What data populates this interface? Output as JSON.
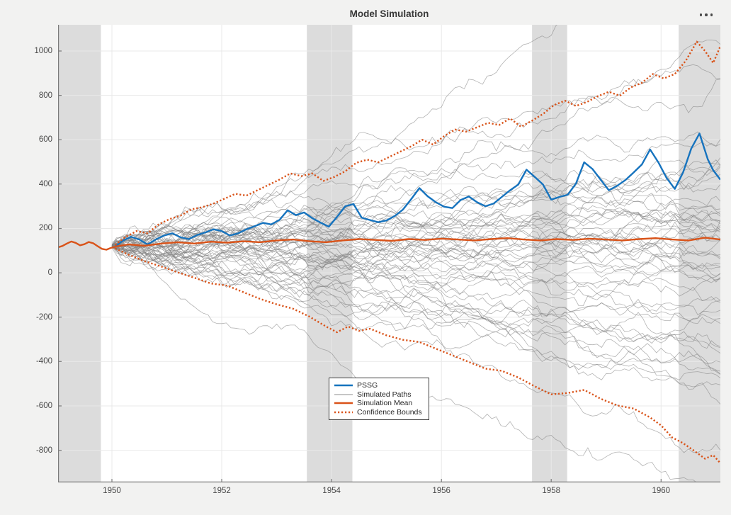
{
  "toolbar": {
    "more_options_icon": "ellipsis-icon"
  },
  "chart_data": {
    "type": "line",
    "title": "Model Simulation",
    "xlabel": "",
    "ylabel": "",
    "xlim": [
      1949.02,
      1961.08
    ],
    "ylim": [
      -945,
      1118
    ],
    "grid": true,
    "x_ticks": [
      1950,
      1952,
      1954,
      1956,
      1958,
      1960
    ],
    "x_tick_labels": [
      "1950",
      "1952",
      "1954",
      "1956",
      "1958",
      "1960"
    ],
    "y_ticks": [
      -800,
      -600,
      -400,
      -200,
      0,
      200,
      400,
      600,
      800,
      1000
    ],
    "y_tick_labels": [
      "-800",
      "-600",
      "-400",
      "-200",
      "0",
      "200",
      "400",
      "600",
      "800",
      "1000"
    ],
    "recession_bands": [
      [
        1949.02,
        1949.8
      ],
      [
        1953.55,
        1954.38
      ],
      [
        1957.65,
        1958.29
      ],
      [
        1960.32,
        1961.08
      ]
    ],
    "colors": {
      "pssg_blue": "#1673BE",
      "orange": "#D95319",
      "simulated_gray": "#808080",
      "band_gray": "#dcdcdc",
      "grid": "#e9e9e9",
      "spine": "#7b7b7b",
      "tick_label": "#474747",
      "figure_background": "#f2f2f1",
      "axes_background": "#ffffff"
    },
    "legend": {
      "position": "south-center",
      "entries": [
        {
          "label": "PSSG",
          "color": "#1673BE",
          "width": 2.6,
          "dash": "none"
        },
        {
          "label": "Simulated Paths",
          "color": "#8c8c8c",
          "width": 1,
          "dash": "none"
        },
        {
          "label": "Simulation Mean",
          "color": "#D95319",
          "width": 2.6,
          "dash": "none"
        },
        {
          "label": "Confidence Bounds",
          "color": "#D95319",
          "width": 2.6,
          "dash": "2.2 2.8"
        }
      ]
    },
    "series": [
      {
        "name": "Observed PSSG (pre-sample)",
        "color": "#D95319",
        "width": 2.4,
        "dash": "none",
        "points": [
          [
            1949.02,
            115
          ],
          [
            1949.1,
            121
          ],
          [
            1949.18,
            132
          ],
          [
            1949.26,
            141
          ],
          [
            1949.34,
            135
          ],
          [
            1949.42,
            124
          ],
          [
            1949.5,
            129
          ],
          [
            1949.58,
            139
          ],
          [
            1949.66,
            133
          ],
          [
            1949.74,
            120
          ],
          [
            1949.82,
            108
          ],
          [
            1949.9,
            104
          ],
          [
            1949.98,
            112
          ],
          [
            1950.06,
            117
          ]
        ]
      },
      {
        "name": "PSSG",
        "color": "#1673BE",
        "width": 2.4,
        "dash": "none",
        "points": [
          [
            1950.06,
            118
          ],
          [
            1950.2,
            145
          ],
          [
            1950.35,
            162
          ],
          [
            1950.5,
            150
          ],
          [
            1950.65,
            128
          ],
          [
            1950.8,
            150
          ],
          [
            1950.95,
            168
          ],
          [
            1951.1,
            178
          ],
          [
            1951.25,
            160
          ],
          [
            1951.4,
            152
          ],
          [
            1951.55,
            170
          ],
          [
            1951.7,
            182
          ],
          [
            1951.85,
            196
          ],
          [
            1952.0,
            188
          ],
          [
            1952.15,
            168
          ],
          [
            1952.3,
            178
          ],
          [
            1952.45,
            196
          ],
          [
            1952.6,
            210
          ],
          [
            1952.75,
            225
          ],
          [
            1952.9,
            218
          ],
          [
            1953.05,
            238
          ],
          [
            1953.2,
            282
          ],
          [
            1953.35,
            260
          ],
          [
            1953.5,
            272
          ],
          [
            1953.65,
            246
          ],
          [
            1953.8,
            226
          ],
          [
            1953.95,
            208
          ],
          [
            1954.1,
            252
          ],
          [
            1954.25,
            300
          ],
          [
            1954.4,
            310
          ],
          [
            1954.55,
            248
          ],
          [
            1954.7,
            238
          ],
          [
            1954.85,
            228
          ],
          [
            1955.0,
            236
          ],
          [
            1955.15,
            256
          ],
          [
            1955.3,
            285
          ],
          [
            1955.45,
            332
          ],
          [
            1955.6,
            382
          ],
          [
            1955.75,
            345
          ],
          [
            1955.9,
            318
          ],
          [
            1956.05,
            298
          ],
          [
            1956.2,
            292
          ],
          [
            1956.35,
            328
          ],
          [
            1956.5,
            344
          ],
          [
            1956.65,
            318
          ],
          [
            1956.8,
            300
          ],
          [
            1956.95,
            312
          ],
          [
            1957.1,
            342
          ],
          [
            1957.25,
            372
          ],
          [
            1957.4,
            398
          ],
          [
            1957.55,
            465
          ],
          [
            1957.7,
            432
          ],
          [
            1957.85,
            398
          ],
          [
            1958.0,
            330
          ],
          [
            1958.15,
            342
          ],
          [
            1958.3,
            352
          ],
          [
            1958.45,
            402
          ],
          [
            1958.6,
            498
          ],
          [
            1958.75,
            468
          ],
          [
            1958.9,
            420
          ],
          [
            1959.05,
            372
          ],
          [
            1959.2,
            392
          ],
          [
            1959.35,
            418
          ],
          [
            1959.5,
            452
          ],
          [
            1959.65,
            488
          ],
          [
            1959.8,
            556
          ],
          [
            1959.95,
            498
          ],
          [
            1960.1,
            428
          ],
          [
            1960.25,
            378
          ],
          [
            1960.4,
            452
          ],
          [
            1960.55,
            560
          ],
          [
            1960.7,
            628
          ],
          [
            1960.85,
            512
          ],
          [
            1960.95,
            462
          ],
          [
            1961.08,
            420
          ]
        ]
      },
      {
        "name": "Simulation Mean",
        "color": "#D95319",
        "width": 2.4,
        "dash": "none",
        "points": [
          [
            1950.06,
            118
          ],
          [
            1950.3,
            128
          ],
          [
            1950.6,
            122
          ],
          [
            1950.9,
            132
          ],
          [
            1951.2,
            138
          ],
          [
            1951.5,
            132
          ],
          [
            1951.8,
            140
          ],
          [
            1952.1,
            136
          ],
          [
            1952.4,
            142
          ],
          [
            1952.7,
            138
          ],
          [
            1953.0,
            146
          ],
          [
            1953.3,
            150
          ],
          [
            1953.6,
            142
          ],
          [
            1953.9,
            138
          ],
          [
            1954.2,
            146
          ],
          [
            1954.5,
            152
          ],
          [
            1954.8,
            148
          ],
          [
            1955.1,
            144
          ],
          [
            1955.4,
            152
          ],
          [
            1955.7,
            148
          ],
          [
            1956.0,
            154
          ],
          [
            1956.3,
            150
          ],
          [
            1956.6,
            146
          ],
          [
            1956.9,
            152
          ],
          [
            1957.2,
            156
          ],
          [
            1957.5,
            150
          ],
          [
            1957.8,
            146
          ],
          [
            1958.1,
            152
          ],
          [
            1958.4,
            148
          ],
          [
            1958.7,
            154
          ],
          [
            1959.0,
            150
          ],
          [
            1959.3,
            146
          ],
          [
            1959.6,
            152
          ],
          [
            1959.9,
            156
          ],
          [
            1960.2,
            150
          ],
          [
            1960.5,
            146
          ],
          [
            1960.8,
            158
          ],
          [
            1961.08,
            150
          ]
        ]
      },
      {
        "name": "Confidence Bound Upper",
        "color": "#D95319",
        "width": 2.4,
        "dash": "2.2 2.8",
        "points": [
          [
            1950.06,
            126
          ],
          [
            1950.25,
            162
          ],
          [
            1950.45,
            188
          ],
          [
            1950.65,
            178
          ],
          [
            1950.85,
            218
          ],
          [
            1951.05,
            242
          ],
          [
            1951.25,
            258
          ],
          [
            1951.45,
            286
          ],
          [
            1951.65,
            296
          ],
          [
            1951.85,
            312
          ],
          [
            1952.05,
            334
          ],
          [
            1952.25,
            356
          ],
          [
            1952.45,
            348
          ],
          [
            1952.65,
            372
          ],
          [
            1952.85,
            396
          ],
          [
            1953.05,
            420
          ],
          [
            1953.25,
            448
          ],
          [
            1953.45,
            436
          ],
          [
            1953.65,
            448
          ],
          [
            1953.85,
            414
          ],
          [
            1954.05,
            432
          ],
          [
            1954.25,
            458
          ],
          [
            1954.45,
            496
          ],
          [
            1954.65,
            510
          ],
          [
            1954.85,
            498
          ],
          [
            1955.05,
            522
          ],
          [
            1955.25,
            546
          ],
          [
            1955.45,
            570
          ],
          [
            1955.65,
            600
          ],
          [
            1955.85,
            578
          ],
          [
            1956.05,
            616
          ],
          [
            1956.25,
            646
          ],
          [
            1956.45,
            636
          ],
          [
            1956.65,
            656
          ],
          [
            1956.85,
            676
          ],
          [
            1957.05,
            666
          ],
          [
            1957.25,
            696
          ],
          [
            1957.45,
            658
          ],
          [
            1957.65,
            686
          ],
          [
            1957.85,
            716
          ],
          [
            1958.05,
            756
          ],
          [
            1958.25,
            776
          ],
          [
            1958.45,
            752
          ],
          [
            1958.65,
            770
          ],
          [
            1958.85,
            796
          ],
          [
            1959.05,
            816
          ],
          [
            1959.25,
            798
          ],
          [
            1959.45,
            836
          ],
          [
            1959.65,
            856
          ],
          [
            1959.85,
            896
          ],
          [
            1960.05,
            876
          ],
          [
            1960.25,
            896
          ],
          [
            1960.45,
            956
          ],
          [
            1960.65,
            1042
          ],
          [
            1960.8,
            1000
          ],
          [
            1960.95,
            946
          ],
          [
            1961.08,
            1022
          ]
        ]
      },
      {
        "name": "Confidence Bound Lower",
        "color": "#D95319",
        "width": 2.4,
        "dash": "2.2 2.8",
        "points": [
          [
            1950.06,
            110
          ],
          [
            1950.3,
            82
          ],
          [
            1950.6,
            52
          ],
          [
            1950.9,
            28
          ],
          [
            1951.2,
            2
          ],
          [
            1951.5,
            -22
          ],
          [
            1951.8,
            -48
          ],
          [
            1952.1,
            -58
          ],
          [
            1952.4,
            -88
          ],
          [
            1952.7,
            -118
          ],
          [
            1953.0,
            -142
          ],
          [
            1953.3,
            -162
          ],
          [
            1953.6,
            -198
          ],
          [
            1953.9,
            -242
          ],
          [
            1954.1,
            -268
          ],
          [
            1954.3,
            -242
          ],
          [
            1954.5,
            -262
          ],
          [
            1954.7,
            -252
          ],
          [
            1955.0,
            -282
          ],
          [
            1955.3,
            -302
          ],
          [
            1955.6,
            -312
          ],
          [
            1955.9,
            -342
          ],
          [
            1956.2,
            -372
          ],
          [
            1956.5,
            -402
          ],
          [
            1956.8,
            -432
          ],
          [
            1957.1,
            -442
          ],
          [
            1957.4,
            -472
          ],
          [
            1957.7,
            -512
          ],
          [
            1958.0,
            -548
          ],
          [
            1958.3,
            -542
          ],
          [
            1958.6,
            -528
          ],
          [
            1958.9,
            -568
          ],
          [
            1959.2,
            -598
          ],
          [
            1959.5,
            -612
          ],
          [
            1959.8,
            -652
          ],
          [
            1960.0,
            -688
          ],
          [
            1960.2,
            -742
          ],
          [
            1960.4,
            -768
          ],
          [
            1960.6,
            -802
          ],
          [
            1960.8,
            -838
          ],
          [
            1960.95,
            -822
          ],
          [
            1961.08,
            -858
          ]
        ]
      }
    ],
    "simulated_paths": {
      "count": 60,
      "seed": 11,
      "start_year": 1950.0,
      "end_year": 1961.08,
      "steps_per_year": 12,
      "start_value": 120,
      "start_jitter": 5,
      "slope_std_per_year": 40,
      "step_std": 15,
      "color": "#808080",
      "opacity": 0.6,
      "width": 0.8
    }
  }
}
